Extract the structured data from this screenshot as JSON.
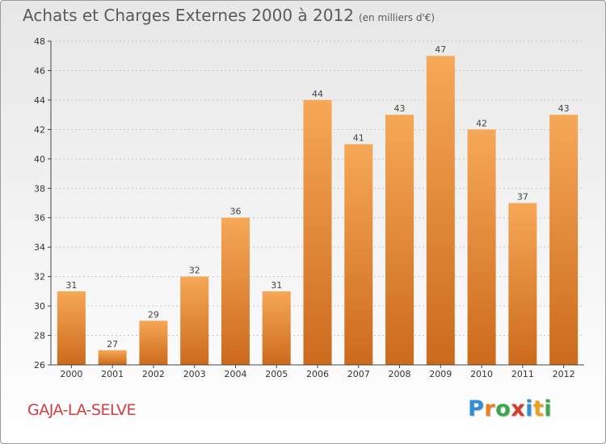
{
  "title": "Achats et Charges Externes 2000 à 2012",
  "subtitle": "(en milliers d'€)",
  "commune": "GAJA-LA-SELVE",
  "logo": {
    "letters": [
      "P",
      "r",
      "o",
      "x",
      "i",
      "t",
      "i"
    ],
    "colors": [
      "#2f8fd6",
      "#e8821c",
      "#3aa84a",
      "#d83a2e",
      "#2f8fd6",
      "#e8a21c",
      "#3aa84a"
    ]
  },
  "colors": {
    "bar_light": "#f6a857",
    "bar_dark": "#cc6a1c",
    "axis": "#444444",
    "grid": "#c8c8c8"
  },
  "chart_data": {
    "type": "bar",
    "categories": [
      "2000",
      "2001",
      "2002",
      "2003",
      "2004",
      "2005",
      "2006",
      "2007",
      "2008",
      "2009",
      "2010",
      "2011",
      "2012"
    ],
    "values": [
      31,
      27,
      29,
      32,
      36,
      31,
      44,
      41,
      43,
      47,
      42,
      37,
      43
    ],
    "ylim": [
      26,
      48
    ],
    "yticks": [
      26,
      28,
      30,
      32,
      34,
      36,
      38,
      40,
      42,
      44,
      46,
      48
    ],
    "grid": true,
    "xlabel": "",
    "ylabel": ""
  }
}
